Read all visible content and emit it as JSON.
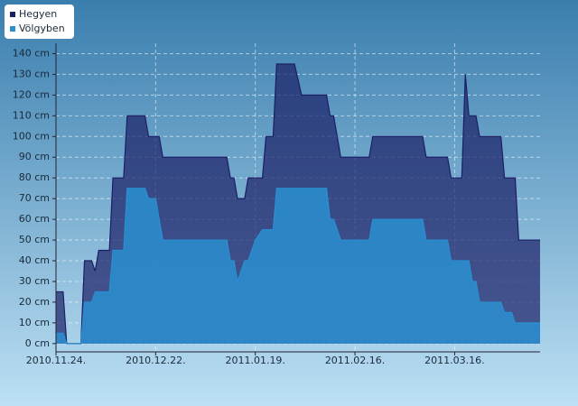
{
  "chart_data": {
    "type": "area",
    "x": [
      "2010-11-24",
      "2010-11-26",
      "2010-11-27",
      "2010-12-01",
      "2010-12-02",
      "2010-12-04",
      "2010-12-05",
      "2010-12-06",
      "2010-12-09",
      "2010-12-10",
      "2010-12-13",
      "2010-12-14",
      "2010-12-19",
      "2010-12-20",
      "2010-12-22",
      "2010-12-23",
      "2010-12-24",
      "2011-01-11",
      "2011-01-12",
      "2011-01-13",
      "2011-01-14",
      "2011-01-16",
      "2011-01-17",
      "2011-01-19",
      "2011-01-21",
      "2011-01-22",
      "2011-01-24",
      "2011-01-25",
      "2011-01-30",
      "2011-02-01",
      "2011-02-08",
      "2011-02-09",
      "2011-02-10",
      "2011-02-12",
      "2011-02-20",
      "2011-02-21",
      "2011-03-07",
      "2011-03-08",
      "2011-03-14",
      "2011-03-15",
      "2011-03-18",
      "2011-03-19",
      "2011-03-20",
      "2011-03-21",
      "2011-03-22",
      "2011-03-23",
      "2011-03-29",
      "2011-03-30",
      "2011-04-01",
      "2011-04-02",
      "2011-04-03",
      "2011-04-09"
    ],
    "series": [
      {
        "name": "Hegyen",
        "color": "#1b1f66",
        "values": [
          25,
          25,
          0,
          0,
          40,
          40,
          35,
          45,
          45,
          80,
          80,
          110,
          110,
          100,
          100,
          100,
          90,
          90,
          80,
          80,
          70,
          70,
          80,
          80,
          80,
          100,
          100,
          135,
          135,
          120,
          120,
          110,
          110,
          90,
          90,
          100,
          100,
          90,
          90,
          80,
          80,
          130,
          110,
          110,
          110,
          100,
          100,
          80,
          80,
          80,
          50,
          50
        ]
      },
      {
        "name": "Völgyben",
        "color": "#2a8fd0",
        "values": [
          5,
          5,
          0,
          0,
          20,
          20,
          25,
          25,
          25,
          45,
          45,
          75,
          75,
          70,
          70,
          60,
          50,
          50,
          40,
          40,
          30,
          40,
          40,
          50,
          55,
          55,
          55,
          75,
          75,
          75,
          75,
          60,
          60,
          50,
          50,
          60,
          60,
          50,
          50,
          40,
          40,
          40,
          40,
          30,
          30,
          20,
          20,
          15,
          15,
          10,
          10,
          10
        ]
      }
    ],
    "xlim": [
      "2010-11-24",
      "2011-04-09"
    ],
    "xticks": [
      {
        "value": "2010-11-24",
        "label": "2010.11.24."
      },
      {
        "value": "2010-12-22",
        "label": "2010.12.22."
      },
      {
        "value": "2011-01-19",
        "label": "2011.01.19."
      },
      {
        "value": "2011-02-16",
        "label": "2011.02.16."
      },
      {
        "value": "2011-03-16",
        "label": "2011.03.16."
      }
    ],
    "ylim": [
      -4,
      145
    ],
    "yticks": [
      {
        "value": 0,
        "label": "0 cm"
      },
      {
        "value": 10,
        "label": "10 cm"
      },
      {
        "value": 20,
        "label": "20 cm"
      },
      {
        "value": 30,
        "label": "30 cm"
      },
      {
        "value": 40,
        "label": "40 cm"
      },
      {
        "value": 50,
        "label": "50 cm"
      },
      {
        "value": 60,
        "label": "60 cm"
      },
      {
        "value": 70,
        "label": "70 cm"
      },
      {
        "value": 80,
        "label": "80 cm"
      },
      {
        "value": 90,
        "label": "90 cm"
      },
      {
        "value": 100,
        "label": "100 cm"
      },
      {
        "value": 110,
        "label": "110 cm"
      },
      {
        "value": 120,
        "label": "120 cm"
      },
      {
        "value": 130,
        "label": "130 cm"
      },
      {
        "value": 140,
        "label": "140 cm"
      }
    ],
    "grid": true,
    "legend": "top-left"
  }
}
